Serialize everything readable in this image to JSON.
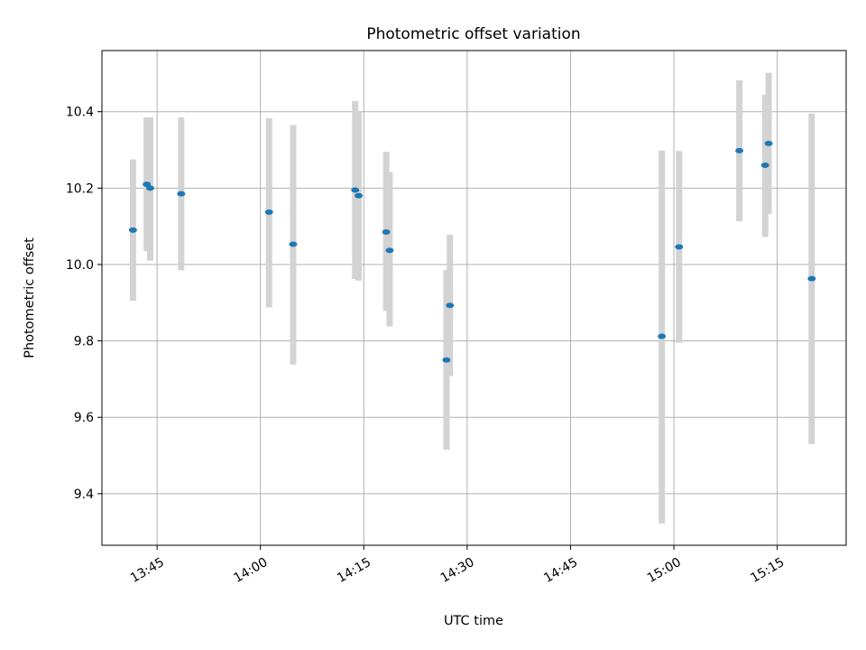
{
  "chart_data": {
    "type": "scatter",
    "title": "Photometric offset variation",
    "xlabel": "UTC time",
    "ylabel": "Photometric offset",
    "x_type": "time",
    "xlim": [
      "13:37",
      "15:25"
    ],
    "ylim": [
      9.265,
      10.56
    ],
    "xticks": [
      "13:45",
      "14:00",
      "14:15",
      "14:30",
      "14:45",
      "15:00",
      "15:15"
    ],
    "yticks": [
      9.4,
      9.6,
      9.8,
      10.0,
      10.2,
      10.4
    ],
    "ytick_labels": [
      "9.4",
      "9.6",
      "9.8",
      "10.0",
      "10.2",
      "10.4"
    ],
    "grid": true,
    "point_color": "#1f77b4",
    "errorbar_color": "#d3d3d3",
    "series": [
      {
        "points": [
          {
            "x": "13:41:30",
            "y": 10.09,
            "ylow": 9.905,
            "yhigh": 10.275
          },
          {
            "x": "13:43:30",
            "y": 10.21,
            "ylow": 10.035,
            "yhigh": 10.385
          },
          {
            "x": "13:44:00",
            "y": 10.2,
            "ylow": 10.01,
            "yhigh": 10.385
          },
          {
            "x": "13:48:30",
            "y": 10.185,
            "ylow": 9.985,
            "yhigh": 10.385
          },
          {
            "x": "14:01:15",
            "y": 10.137,
            "ylow": 9.888,
            "yhigh": 10.383
          },
          {
            "x": "14:04:45",
            "y": 10.053,
            "ylow": 9.738,
            "yhigh": 10.365
          },
          {
            "x": "14:13:45",
            "y": 10.195,
            "ylow": 9.962,
            "yhigh": 10.428
          },
          {
            "x": "14:14:15",
            "y": 10.18,
            "ylow": 9.958,
            "yhigh": 10.4
          },
          {
            "x": "14:18:15",
            "y": 10.085,
            "ylow": 9.878,
            "yhigh": 10.295
          },
          {
            "x": "14:18:45",
            "y": 10.037,
            "ylow": 9.838,
            "yhigh": 10.242
          },
          {
            "x": "14:27:00",
            "y": 9.75,
            "ylow": 9.515,
            "yhigh": 9.985
          },
          {
            "x": "14:27:30",
            "y": 9.893,
            "ylow": 9.708,
            "yhigh": 10.078
          },
          {
            "x": "14:58:15",
            "y": 9.812,
            "ylow": 9.322,
            "yhigh": 10.298
          },
          {
            "x": "15:00:45",
            "y": 10.046,
            "ylow": 9.795,
            "yhigh": 10.297
          },
          {
            "x": "15:09:30",
            "y": 10.298,
            "ylow": 10.113,
            "yhigh": 10.482
          },
          {
            "x": "15:13:15",
            "y": 10.26,
            "ylow": 10.072,
            "yhigh": 10.445
          },
          {
            "x": "15:13:45",
            "y": 10.317,
            "ylow": 10.132,
            "yhigh": 10.502
          },
          {
            "x": "15:20:00",
            "y": 9.963,
            "ylow": 9.53,
            "yhigh": 10.395
          }
        ]
      }
    ]
  }
}
